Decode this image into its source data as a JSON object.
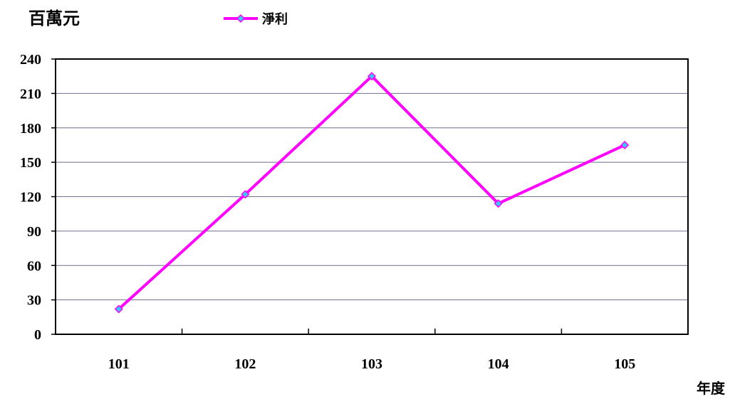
{
  "chart_data": {
    "type": "line",
    "title": "",
    "ylabel": "百萬元",
    "xlabel": "年度",
    "categories": [
      "101",
      "102",
      "103",
      "104",
      "105"
    ],
    "series": [
      {
        "name": "淨利",
        "values": [
          22,
          122,
          225,
          114,
          165
        ],
        "color": "#ff00ff",
        "marker_color": "#33ccff"
      }
    ],
    "ylim": [
      0,
      240
    ],
    "yticks": [
      "0",
      "30",
      "60",
      "90",
      "120",
      "150",
      "180",
      "210",
      "240"
    ],
    "grid": true,
    "legend_position": "top"
  }
}
